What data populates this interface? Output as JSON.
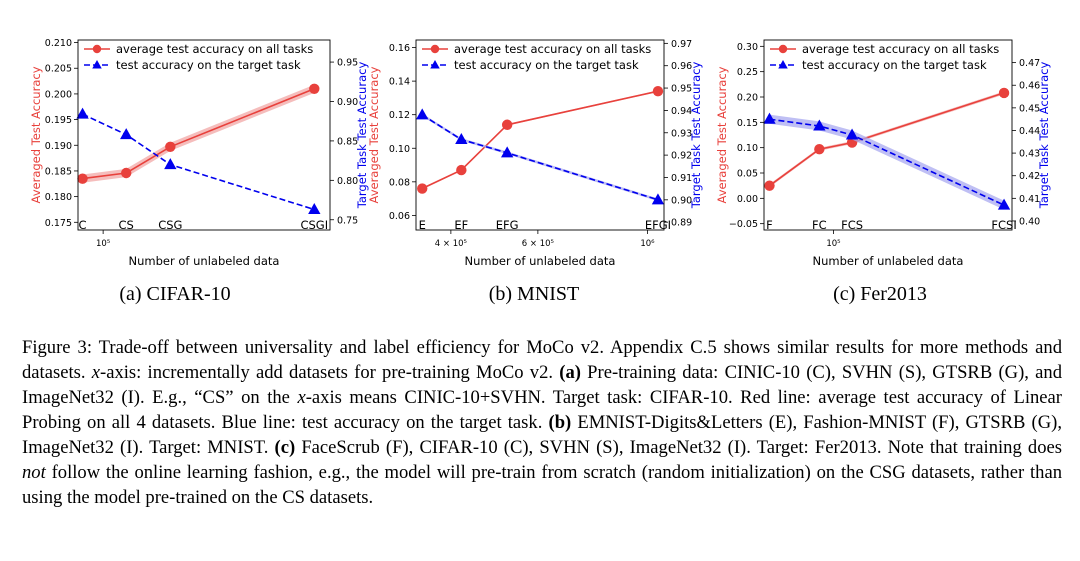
{
  "colors": {
    "red": "#e8413c",
    "blue": "#0000ee",
    "red_band": "#f2a7a5",
    "blue_band": "#a9a9f0"
  },
  "legend": {
    "red": "average test accuracy on all tasks",
    "blue": "test accuracy on the target task"
  },
  "subcaptions": [
    "(a)  CIFAR-10",
    "(b)  MNIST",
    "(c)  Fer2013"
  ],
  "caption": {
    "fig_label": "Figure 3:",
    "part1": " Trade-off between universality and label efficiency for MoCo v2. Appendix C.5 shows similar results for more methods and datasets. ",
    "x1": "x",
    "part2": "-axis: incrementally add datasets for pre-training MoCo v2. ",
    "a_label": "(a)",
    "part3": " Pre-training data: CINIC-10 (C), SVHN (S), GTSRB (G), and ImageNet32 (I). E.g., “CS” on the ",
    "x2": "x",
    "part4": "-axis means CINIC-10+SVHN. Target task: CIFAR-10. Red line: average test accuracy of Linear Probing on all 4 datasets. Blue line: test accuracy on the target task. ",
    "b_label": "(b)",
    "part5": " EMNIST-Digits&Letters (E), Fashion-MNIST (F), GTSRB (G), ImageNet32 (I). Target: MNIST. ",
    "c_label": "(c)",
    "part6": " FaceScrub (F), CIFAR-10 (C), SVHN (S), ImageNet32 (I). Target: Fer2013. Note that training does ",
    "not_word": "not",
    "part7": " follow the online learning fashion, e.g., the model will pre-train from scratch (random initialization) on the CSG datasets, rather than using the model pre-trained on the CS datasets."
  },
  "chart_data": [
    {
      "type": "line",
      "xlabel": "Number of unlabeled data",
      "ylabel_left": "Averaged Test Accuracy",
      "ylabel_right": "Target Task Test Accuracy",
      "x_scale": "log",
      "x_range": [
        82000,
        600000
      ],
      "x": [
        85000,
        120000,
        170000,
        530000
      ],
      "x_labels": [
        "C",
        "CS",
        "CSG",
        "CSGI"
      ],
      "x_ticks": [
        {
          "value": 100000,
          "label": "10⁵"
        }
      ],
      "left_range": [
        0.1735,
        0.2105
      ],
      "left_ticks": [
        0.175,
        0.18,
        0.185,
        0.19,
        0.195,
        0.2,
        0.205,
        0.21
      ],
      "left_tick_labels": [
        "0.175",
        "0.180",
        "0.185",
        "0.190",
        "0.195",
        "0.200",
        "0.205",
        "0.210"
      ],
      "right_range": [
        0.737,
        0.978
      ],
      "right_ticks": [
        0.75,
        0.8,
        0.85,
        0.9,
        0.95
      ],
      "right_tick_labels": [
        "0.75",
        "0.80",
        "0.85",
        "0.90",
        "0.95"
      ],
      "series": [
        {
          "name": "average test accuracy on all tasks",
          "axis": "left",
          "values": [
            0.1835,
            0.1846,
            0.1897,
            0.201
          ],
          "band": 0.0008
        },
        {
          "name": "test accuracy on the target task",
          "axis": "right",
          "values": [
            0.884,
            0.858,
            0.82,
            0.763
          ],
          "band": 0
        }
      ]
    },
    {
      "type": "line",
      "xlabel": "Number of unlabeled data",
      "ylabel_left": "Averaged Test Accuracy",
      "ylabel_right": "Target Task Test Accuracy",
      "x_scale": "log",
      "x_range": [
        340000,
        1080000
      ],
      "x": [
        350000,
        420000,
        520000,
        1050000
      ],
      "x_labels": [
        "E",
        "EF",
        "EFG",
        "EFGI"
      ],
      "x_ticks": [
        {
          "value": 400000,
          "label": "4 × 10⁵"
        },
        {
          "value": 600000,
          "label": "6 × 10⁵"
        },
        {
          "value": 1000000,
          "label": "10⁶"
        }
      ],
      "left_range": [
        0.0513,
        0.1645
      ],
      "left_ticks": [
        0.06,
        0.08,
        0.1,
        0.12,
        0.14,
        0.16
      ],
      "left_tick_labels": [
        "0.06",
        "0.08",
        "0.10",
        "0.12",
        "0.14",
        "0.16"
      ],
      "right_range": [
        0.8865,
        0.9715
      ],
      "right_ticks": [
        0.89,
        0.9,
        0.91,
        0.92,
        0.93,
        0.94,
        0.95,
        0.96,
        0.97
      ],
      "right_tick_labels": [
        "0.89",
        "0.90",
        "0.91",
        "0.92",
        "0.93",
        "0.94",
        "0.95",
        "0.96",
        "0.97"
      ],
      "series": [
        {
          "name": "average test accuracy on all tasks",
          "axis": "left",
          "values": [
            0.076,
            0.087,
            0.114,
            0.134
          ],
          "band": 0.0005
        },
        {
          "name": "test accuracy on the target task",
          "axis": "right",
          "values": [
            0.938,
            0.927,
            0.921,
            0.9
          ],
          "band": 0.0006
        }
      ]
    },
    {
      "type": "line",
      "xlabel": "Number of unlabeled data",
      "ylabel_left": "Averaged Test Accuracy",
      "ylabel_right": "Target Task Test Accuracy",
      "x_scale": "log",
      "x_range": [
        70000,
        250000
      ],
      "x": [
        72000,
        93000,
        110000,
        240000
      ],
      "x_labels": [
        "F",
        "FC",
        "FCS",
        "FCSI"
      ],
      "x_ticks": [
        {
          "value": 100000,
          "label": "10⁵"
        }
      ],
      "left_range": [
        -0.0625,
        0.3125
      ],
      "left_ticks": [
        -0.05,
        0.0,
        0.05,
        0.1,
        0.15,
        0.2,
        0.25,
        0.3
      ],
      "left_tick_labels": [
        "−0.05",
        "0.00",
        "0.05",
        "0.10",
        "0.15",
        "0.20",
        "0.25",
        "0.30"
      ],
      "right_range": [
        0.396,
        0.48
      ],
      "right_ticks": [
        0.4,
        0.41,
        0.42,
        0.43,
        0.44,
        0.45,
        0.46,
        0.47
      ],
      "right_tick_labels": [
        "0.40",
        "0.41",
        "0.42",
        "0.43",
        "0.44",
        "0.45",
        "0.46",
        "0.47"
      ],
      "series": [
        {
          "name": "average test accuracy on all tasks",
          "axis": "left",
          "values": [
            0.025,
            0.097,
            0.11,
            0.208
          ],
          "band": 0.003
        },
        {
          "name": "test accuracy on the target task",
          "axis": "right",
          "values": [
            0.445,
            0.442,
            0.438,
            0.407
          ],
          "band": 0.002
        }
      ]
    }
  ]
}
